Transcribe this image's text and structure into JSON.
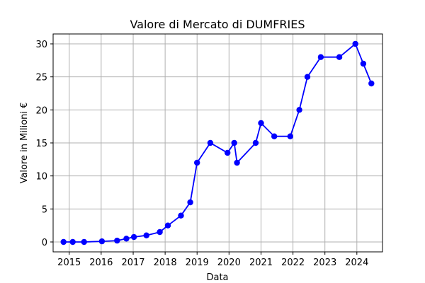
{
  "chart_data": {
    "type": "line",
    "title": "Valore di Mercato di DUMFRIES",
    "xlabel": "Data",
    "ylabel": "Valore in Milioni €",
    "x_ticks": [
      "2015",
      "2016",
      "2017",
      "2018",
      "2019",
      "2020",
      "2021",
      "2022",
      "2023",
      "2024"
    ],
    "y_ticks": [
      "0",
      "5",
      "10",
      "15",
      "20",
      "25",
      "30"
    ],
    "xlim": [
      "2014-07-01",
      "2024-10-20"
    ],
    "ylim": [
      -1.5,
      31.5
    ],
    "grid": true,
    "line_color": "#0000ff",
    "series": [
      {
        "x": [
          "2014-10-28",
          "2015-02-10",
          "2015-06-20",
          "2016-01-10",
          "2016-07-01",
          "2016-10-15",
          "2017-01-10",
          "2017-06-01",
          "2017-11-01",
          "2018-02-01",
          "2018-07-01",
          "2018-10-15",
          "2019-01-01",
          "2019-06-01",
          "2019-12-15",
          "2020-03-01",
          "2020-04-01",
          "2020-11-01",
          "2021-01-01",
          "2021-06-01",
          "2021-12-01",
          "2022-03-15",
          "2022-06-15",
          "2022-11-15",
          "2023-06-15",
          "2023-12-15",
          "2024-03-15",
          "2024-06-15"
        ],
        "y": [
          0,
          0,
          0,
          0.1,
          0.2,
          0.5,
          0.75,
          1,
          1.5,
          2.5,
          4,
          6,
          12,
          15,
          13.5,
          15,
          12,
          15,
          18,
          16,
          16,
          20,
          25,
          28,
          28,
          30,
          27,
          24
        ]
      }
    ]
  }
}
